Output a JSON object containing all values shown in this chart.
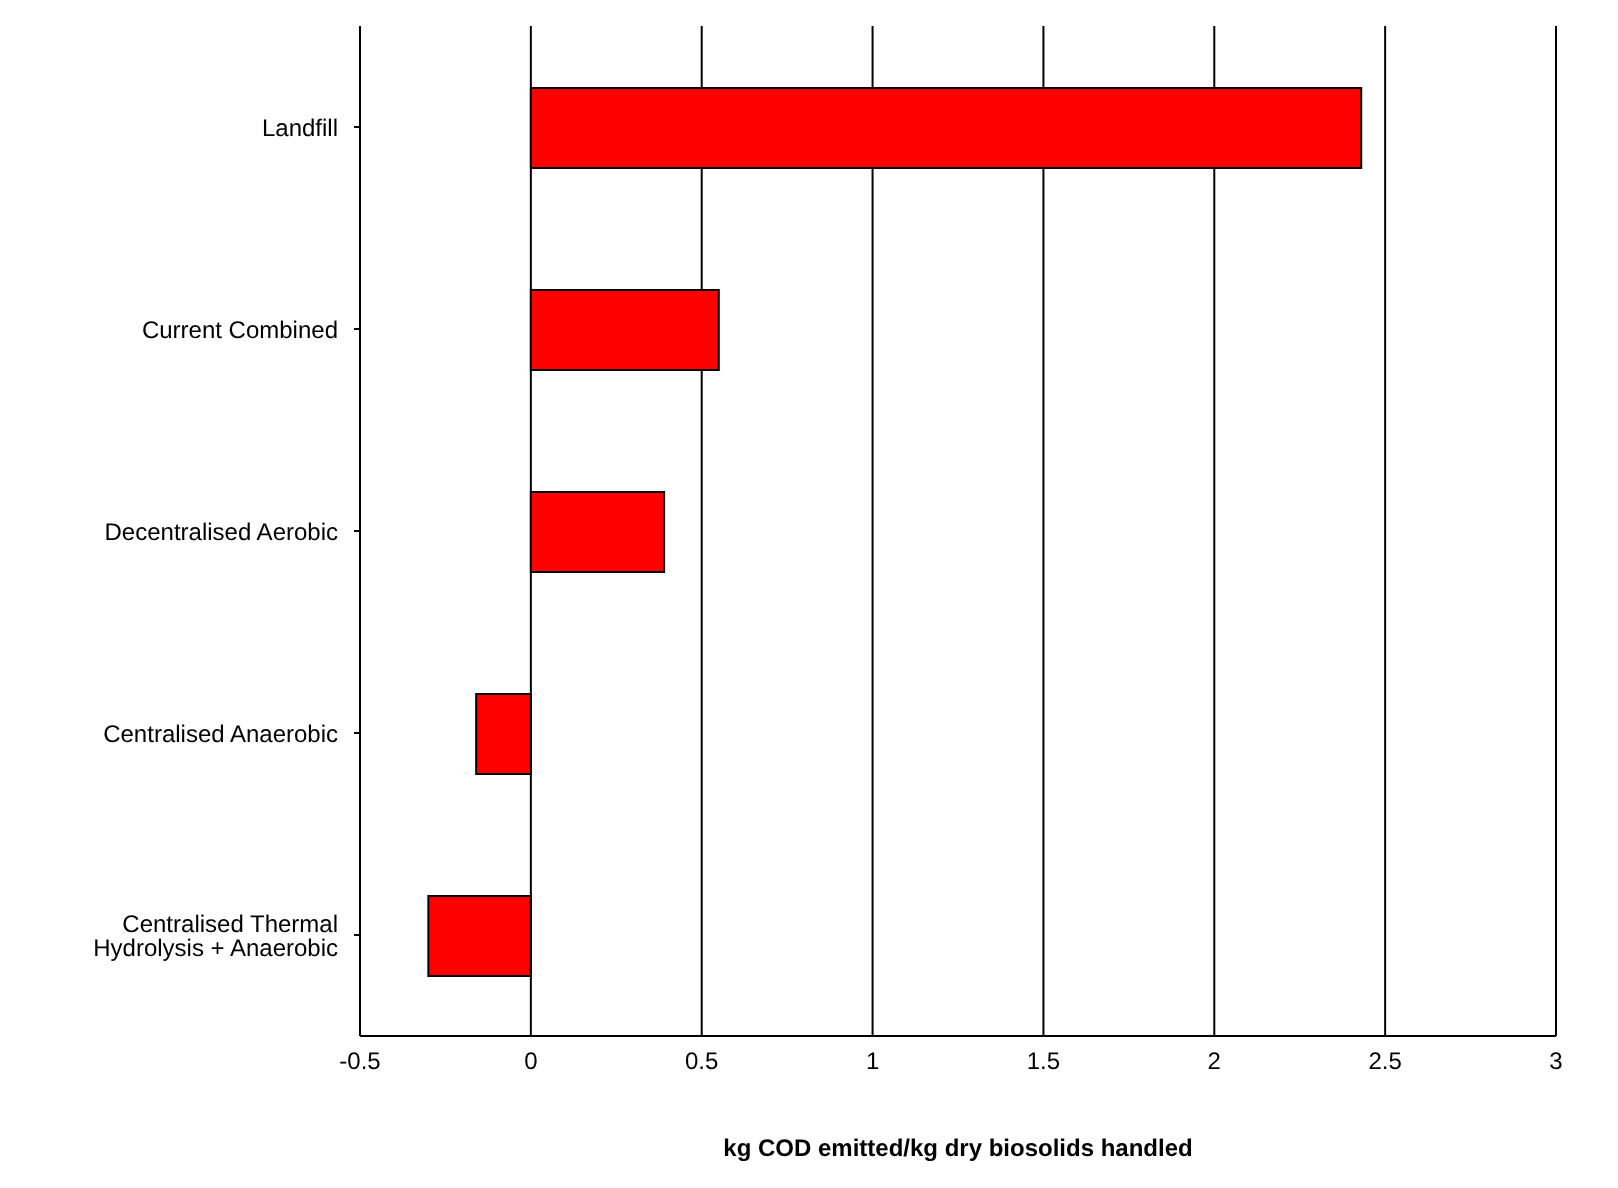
{
  "chart_data": {
    "type": "bar",
    "orientation": "horizontal",
    "xlabel": "kg COD emitted/kg dry biosolids handled",
    "categories": [
      "Landfill",
      "Current Combined",
      "Decentralised Aerobic",
      "Centralised Anaerobic",
      "Centralised Thermal Hydrolysis + Anaerobic"
    ],
    "values": [
      2.43,
      0.55,
      0.39,
      -0.16,
      -0.3
    ],
    "color": "#ff0000",
    "xlim": [
      -0.5,
      3
    ],
    "xticks": [
      -0.5,
      0,
      0.5,
      1,
      1.5,
      2,
      2.5,
      3
    ],
    "grid": "x"
  }
}
